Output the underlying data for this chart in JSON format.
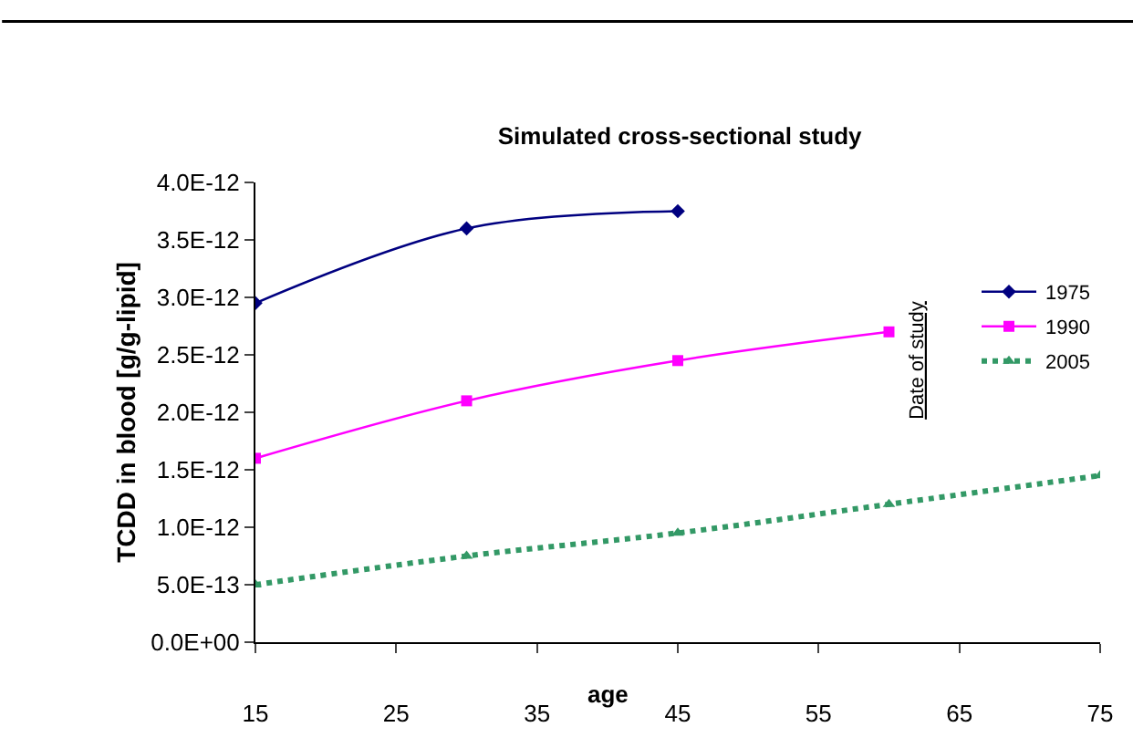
{
  "chart_data": {
    "type": "line",
    "title": "Simulated cross-sectional study",
    "xlabel": "age",
    "ylabel": "TCDD in blood [g/g-lipid]",
    "legend_title": "Date of study",
    "legend": "right",
    "xlim": [
      15,
      75
    ],
    "xticks": [
      15,
      25,
      35,
      45,
      55,
      65,
      75
    ],
    "ylim": [
      0,
      4e-12
    ],
    "yticks": [
      {
        "value": 0,
        "label": "0.0E+00"
      },
      {
        "value": 5e-13,
        "label": "5.0E-13"
      },
      {
        "value": 1e-12,
        "label": "1.0E-12"
      },
      {
        "value": 1.5e-12,
        "label": "1.5E-12"
      },
      {
        "value": 2e-12,
        "label": "2.0E-12"
      },
      {
        "value": 2.5e-12,
        "label": "2.5E-12"
      },
      {
        "value": 3e-12,
        "label": "3.0E-12"
      },
      {
        "value": 3.5e-12,
        "label": "3.5E-12"
      },
      {
        "value": 4e-12,
        "label": "4.0E-12"
      }
    ],
    "series": [
      {
        "name": "1975",
        "color": "#000080",
        "marker": "diamond",
        "line_style": "solid",
        "x": [
          15,
          30,
          45
        ],
        "values": [
          2.95e-12,
          3.6e-12,
          3.75e-12
        ]
      },
      {
        "name": "1990",
        "color": "#ff00ff",
        "marker": "square",
        "line_style": "solid",
        "x": [
          15,
          30,
          45,
          60
        ],
        "values": [
          1.6e-12,
          2.1e-12,
          2.45e-12,
          2.7e-12
        ]
      },
      {
        "name": "2005",
        "color": "#339966",
        "marker": "triangle",
        "line_style": "dotted",
        "x": [
          15,
          30,
          45,
          60,
          75
        ],
        "values": [
          5e-13,
          7.5e-13,
          9.5e-13,
          1.2e-12,
          1.45e-12
        ]
      }
    ]
  }
}
